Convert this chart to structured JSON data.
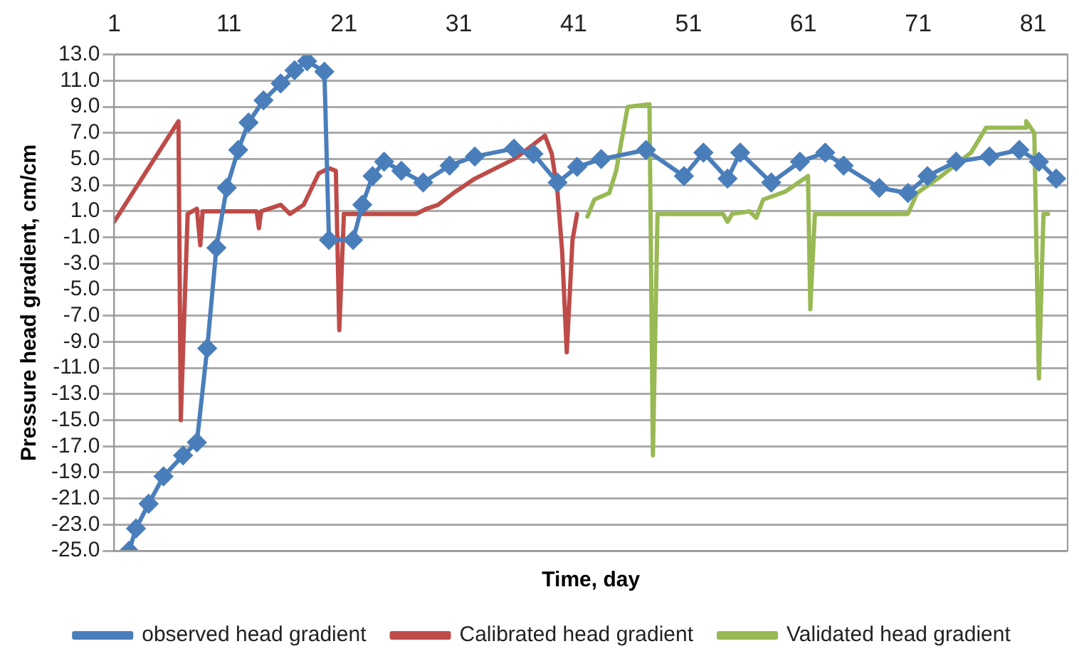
{
  "chart_data": {
    "type": "line",
    "xlabel": "Time, day",
    "ylabel": "Pressure head gradient, cm/cm",
    "xlim": [
      1,
      84
    ],
    "xticks": [
      1,
      11,
      21,
      31,
      41,
      51,
      61,
      71,
      81
    ],
    "ylim": [
      -25,
      13
    ],
    "yticks": [
      {
        "value": -25,
        "label": "-25.0"
      },
      {
        "value": -23,
        "label": "-23.0"
      },
      {
        "value": -21,
        "label": "-21.0"
      },
      {
        "value": -19,
        "label": "-19.0"
      },
      {
        "value": -17,
        "label": "-17.0"
      },
      {
        "value": -15,
        "label": "-15.0"
      },
      {
        "value": -13,
        "label": "-13.0"
      },
      {
        "value": -11,
        "label": "-11.0"
      },
      {
        "value": -9,
        "label": "-9.0"
      },
      {
        "value": -7,
        "label": "-7.0"
      },
      {
        "value": -5,
        "label": "-5.0"
      },
      {
        "value": -3,
        "label": "-3.0"
      },
      {
        "value": -1,
        "label": "-1.0"
      },
      {
        "value": 1,
        "label": "1.0"
      },
      {
        "value": 3,
        "label": "3.0"
      },
      {
        "value": 5,
        "label": "5.0"
      },
      {
        "value": 7,
        "label": "7.0"
      },
      {
        "value": 9,
        "label": "9.0"
      },
      {
        "value": 11,
        "label": "11.0"
      },
      {
        "value": 13,
        "label": "13.0"
      }
    ],
    "grid": "y",
    "legend": "bottom",
    "series": [
      {
        "name": "observed head gradient",
        "color": "#4a7ebb",
        "marker": "diamond",
        "x": [
          2.3,
          2.9,
          4,
          5.3,
          7,
          8.2,
          9.1,
          9.9,
          10.8,
          11.8,
          12.7,
          14,
          15.5,
          16.7,
          17.8,
          19.3,
          19.7,
          21.8,
          22.6,
          23.5,
          24.5,
          26,
          27.9,
          30.2,
          32.4,
          35.8,
          37.5,
          39.6,
          41.3,
          43.4,
          47.3,
          50.6,
          52.3,
          54.4,
          55.5,
          58.2,
          60.7,
          62.9,
          64.5,
          67.6,
          70.1,
          71.8,
          74.3,
          77.2,
          79.8,
          81.5,
          83
        ],
        "values": [
          -25,
          -23.3,
          -21.4,
          -19.3,
          -17.7,
          -16.7,
          -9.5,
          -1.8,
          2.8,
          5.7,
          7.8,
          9.5,
          10.8,
          11.8,
          12.5,
          11.7,
          -1.2,
          -1.2,
          1.5,
          3.7,
          4.8,
          4.1,
          3.2,
          4.5,
          5.2,
          5.8,
          5.4,
          3.2,
          4.4,
          5,
          5.7,
          3.7,
          5.5,
          3.5,
          5.5,
          3.2,
          4.8,
          5.5,
          4.5,
          2.8,
          2.4,
          3.7,
          4.8,
          5.2,
          5.7,
          4.8,
          3.5
        ]
      },
      {
        "name": "Calibrated head gradient",
        "color": "#be4b48",
        "marker": "none",
        "x": [
          1,
          6.6,
          6.8,
          7.4,
          8.2,
          8.5,
          8.7,
          13.4,
          13.6,
          13.8,
          15.5,
          16.3,
          17.5,
          18.8,
          19.7,
          20.3,
          20.6,
          21,
          27.3,
          28.2,
          29.2,
          30.7,
          32.4,
          35.8,
          36.6,
          38.5,
          39.1,
          39.6,
          40,
          40.4,
          40.9,
          41.3
        ],
        "values": [
          0.2,
          7.9,
          -15,
          0.8,
          1.2,
          -1.6,
          1,
          1,
          -0.3,
          1,
          1.5,
          0.8,
          1.5,
          3.9,
          4.3,
          4.1,
          -8.1,
          0.8,
          0.8,
          1.2,
          1.5,
          2.5,
          3.5,
          5,
          5.5,
          6.8,
          5.4,
          2.4,
          -2.1,
          -9.8,
          -1.2,
          0.8
        ]
      },
      {
        "name": "Validated head gradient",
        "color": "#98b954",
        "marker": "none",
        "x": [
          42.2,
          42.8,
          44.1,
          44.7,
          45.7,
          47.6,
          47.9,
          48.3,
          54,
          54.4,
          54.8,
          56.3,
          56.9,
          57.5,
          59.4,
          61.4,
          61.6,
          62,
          70.1,
          70.9,
          73,
          75.6,
          76.9,
          80.3,
          80.4,
          81.1,
          81.5,
          81.9,
          82.3
        ],
        "values": [
          0.6,
          1.9,
          2.4,
          4.1,
          9,
          9.2,
          -17.7,
          0.8,
          0.8,
          0.2,
          0.8,
          1,
          0.5,
          1.9,
          2.5,
          3.7,
          -6.5,
          0.8,
          0.8,
          2.4,
          3.7,
          5.5,
          7.4,
          7.4,
          7.9,
          7,
          -11.8,
          0.8,
          0.8
        ]
      }
    ]
  }
}
